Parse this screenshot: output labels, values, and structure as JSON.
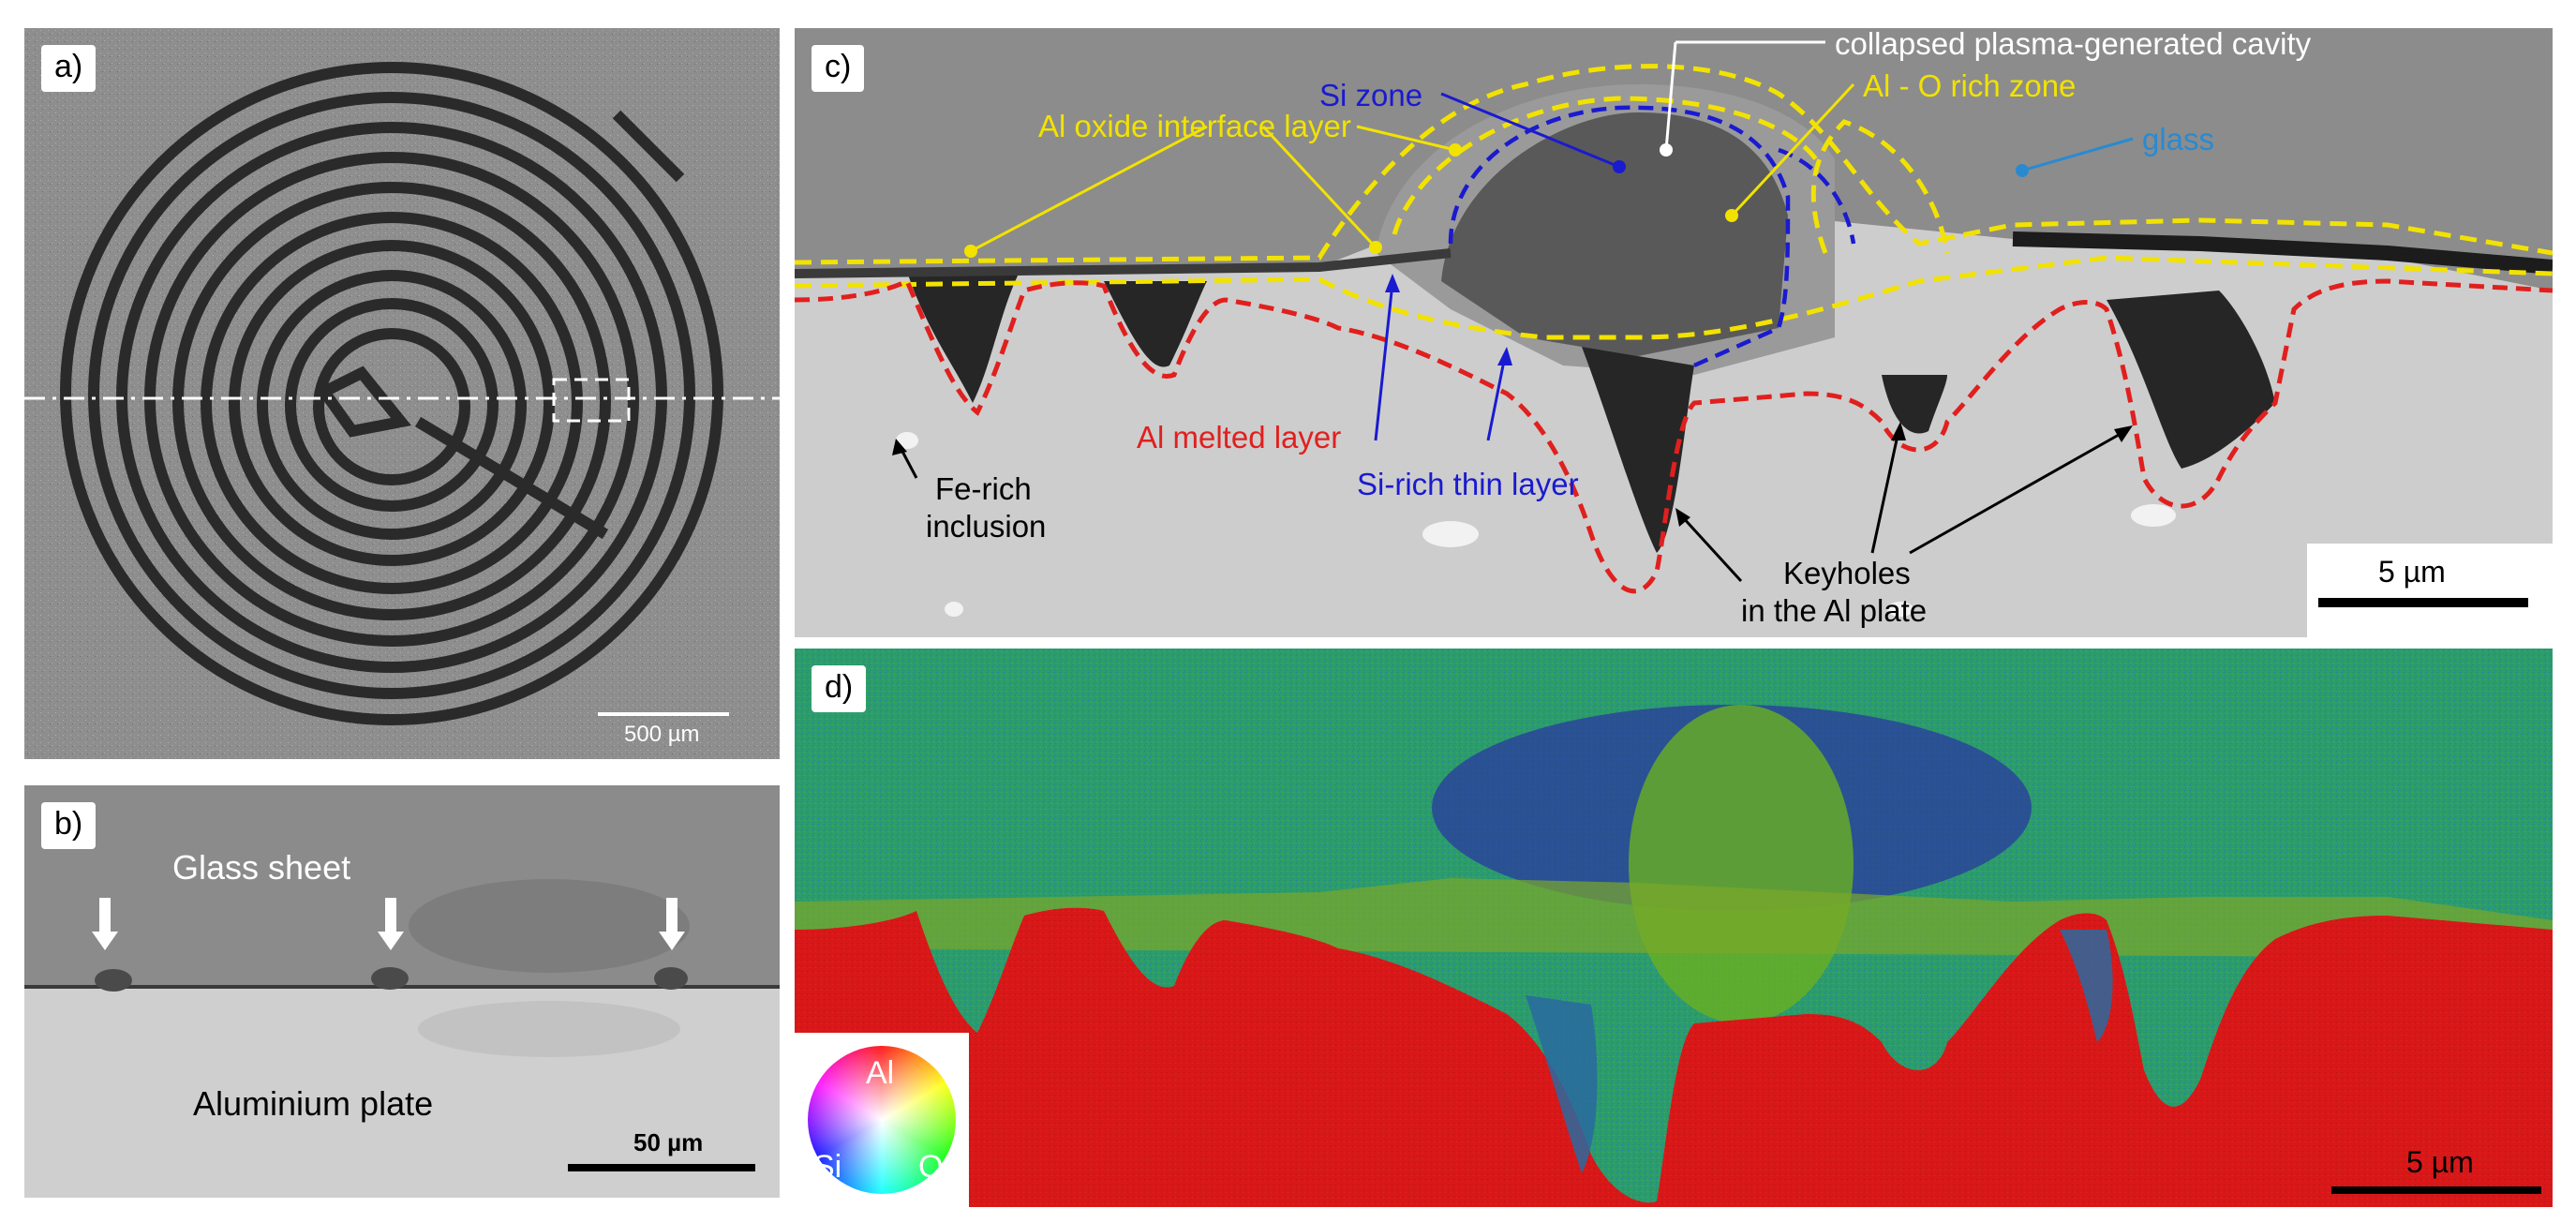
{
  "panels": {
    "a": {
      "label": "a)",
      "scale": "500 µm"
    },
    "b": {
      "label": "b)",
      "glass_text": "Glass sheet",
      "plate_text": "Aluminium plate",
      "scale": "50 µm"
    },
    "c": {
      "label": "c)",
      "scale": "5 µm",
      "annotations": {
        "cavity": "collapsed plasma-generated cavity",
        "si_zone": "Si zone",
        "al_o_rich": "Al - O rich zone",
        "al_oxide": "Al oxide interface layer",
        "glass": "glass",
        "al_melted": "Al melted layer",
        "si_thin": "Si-rich thin layer",
        "fe_rich_1": "Fe-rich",
        "fe_rich_2": "inclusion",
        "keyholes_1": "Keyholes",
        "keyholes_2": "in the Al plate"
      }
    },
    "d": {
      "label": "d)",
      "scale": "5 µm",
      "wheel": {
        "al": "Al",
        "si": "Si",
        "o": "O"
      }
    }
  },
  "colors": {
    "yellow_outline": "#f2e200",
    "blue_outline": "#1a1ad0",
    "red_outline": "#e0201e",
    "glass_label": "#2a8ad0",
    "map_red": "#d81818",
    "map_green": "#2a9a6a"
  }
}
